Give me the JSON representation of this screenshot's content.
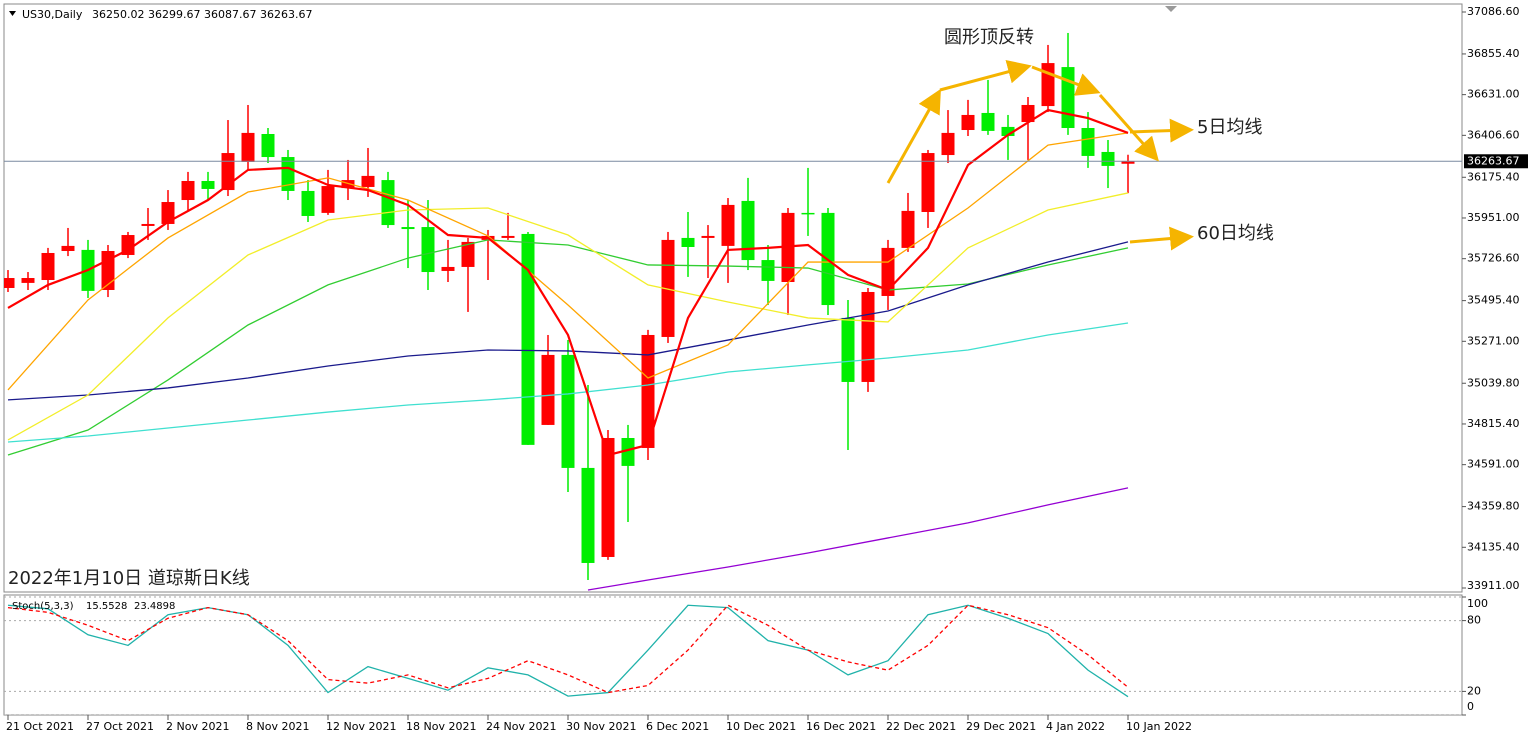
{
  "chart_data": {
    "type": "candlestick",
    "symbol": "US30,Daily",
    "categories": [
      "21 Oct 2021",
      null,
      null,
      null,
      "27 Oct 2021",
      null,
      null,
      null,
      "2 Nov 2021",
      null,
      null,
      null,
      "8 Nov 2021",
      null,
      null,
      null,
      "12 Nov 2021",
      null,
      null,
      null,
      "18 Nov 2021",
      null,
      null,
      null,
      "24 Nov 2021",
      null,
      null,
      null,
      "30 Nov 2021",
      null,
      null,
      null,
      "6 Dec 2021",
      null,
      null,
      null,
      "10 Dec 2021",
      null,
      null,
      null,
      "16 Dec 2021",
      null,
      null,
      null,
      "22 Dec 2021",
      null,
      null,
      null,
      "29 Dec 2021",
      null,
      null,
      null,
      "4 Jan 2022",
      null,
      null,
      null,
      "10 Jan 2022"
    ],
    "open": [
      35565,
      35593,
      35609,
      35769,
      35775,
      35554,
      35747,
      35907,
      35918,
      36050,
      36155,
      36105,
      36260,
      36414,
      36287,
      36100,
      35979,
      36116,
      36122,
      36160,
      35901,
      35901,
      35659,
      35681,
      35830,
      35841,
      35863,
      34810,
      35196,
      34573,
      34082,
      34738,
      34683,
      35295,
      35841,
      35841,
      35797,
      36045,
      35719,
      35598,
      35979,
      35979,
      35400,
      35047,
      35521,
      35786,
      35984,
      36298,
      36436,
      36530,
      36453,
      36480,
      36568,
      36783,
      36447,
      36315,
      36250.02
    ],
    "high": [
      35664,
      35653,
      35786,
      35896,
      35830,
      35802,
      35874,
      36006,
      36105,
      36205,
      36205,
      36491,
      36574,
      36447,
      36326,
      36160,
      36216,
      36271,
      36337,
      36205,
      36050,
      36050,
      35830,
      35841,
      35885,
      35979,
      35874,
      35306,
      35278,
      35030,
      34782,
      34810,
      35334,
      35874,
      35984,
      35912,
      36061,
      36172,
      35802,
      36006,
      36227,
      36006,
      35499,
      35565,
      35830,
      36089,
      36326,
      36546,
      36602,
      36712,
      36519,
      36618,
      36905,
      36971,
      36535,
      36381,
      36299.67
    ],
    "low": [
      35543,
      35554,
      35554,
      35741,
      35510,
      35515,
      35730,
      35830,
      35885,
      35995,
      36050,
      36072,
      36216,
      36254,
      36050,
      35929,
      35968,
      36050,
      36067,
      35896,
      35675,
      35554,
      35598,
      35433,
      35609,
      35830,
      34700,
      34810,
      34440,
      33955,
      34066,
      34275,
      34617,
      35262,
      35626,
      35620,
      35593,
      35664,
      35471,
      35416,
      35852,
      35416,
      34672,
      34992,
      35444,
      35764,
      35896,
      36254,
      36403,
      36409,
      36271,
      36271,
      36535,
      36409,
      36227,
      36116,
      36087.67
    ],
    "close": [
      35620,
      35620,
      35758,
      35797,
      35549,
      35769,
      35857,
      35918,
      36039,
      36155,
      36111,
      36309,
      36420,
      36287,
      36100,
      35962,
      36127,
      36160,
      36183,
      35912,
      35890,
      35653,
      35681,
      35819,
      35852,
      35852,
      34700,
      35196,
      34573,
      34049,
      34738,
      34584,
      35306,
      35830,
      35791,
      35852,
      36023,
      35719,
      35604,
      35979,
      35973,
      35471,
      35047,
      35543,
      35786,
      35990,
      36309,
      36420,
      36519,
      36431,
      36403,
      36574,
      36805,
      36447,
      36293,
      36238,
      36263.67
    ],
    "up_color": "#ff0000",
    "down_color": "#00ee00",
    "ylim": [
      33911,
      37086.6
    ],
    "yticks": [
      {
        "value": 37086.6,
        "label": "37086.60"
      },
      {
        "value": 36855.4,
        "label": "36855.40"
      },
      {
        "value": 36631,
        "label": "36631.00"
      },
      {
        "value": 36406.6,
        "label": "36406.60"
      },
      {
        "value": 36175.4,
        "label": "36175.40"
      },
      {
        "value": 35951,
        "label": "35951.00"
      },
      {
        "value": 35726.6,
        "label": "35726.60"
      },
      {
        "value": 35495.4,
        "label": "35495.40"
      },
      {
        "value": 35271,
        "label": "35271.00"
      },
      {
        "value": 35039.8,
        "label": "35039.80"
      },
      {
        "value": 34815.4,
        "label": "34815.40"
      },
      {
        "value": 34591,
        "label": "34591.00"
      },
      {
        "value": 34359.8,
        "label": "34359.80"
      },
      {
        "value": 34135.4,
        "label": "34135.40"
      },
      {
        "value": 33911,
        "label": "33911.00"
      }
    ],
    "moving_averages": [
      {
        "color": "#32cd32",
        "x": [
          0,
          4,
          8,
          12,
          16,
          20,
          24,
          28,
          32,
          36,
          40,
          44,
          48,
          52,
          56
        ],
        "values": [
          34644,
          34782,
          35058,
          35361,
          35582,
          35730,
          35830,
          35802,
          35692,
          35686,
          35675,
          35554,
          35587,
          35692,
          35786
        ]
      },
      {
        "color": "#40e0d0",
        "x": [
          0,
          4,
          8,
          12,
          16,
          20,
          24,
          28,
          32,
          36,
          40,
          44,
          48,
          52,
          56
        ],
        "values": [
          34716,
          34749,
          34793,
          34837,
          34881,
          34920,
          34948,
          34981,
          35030,
          35102,
          35141,
          35179,
          35223,
          35306,
          35372
        ]
      },
      {
        "color": "#9400d3",
        "x": [
          29,
          32,
          36,
          40,
          44,
          48,
          52,
          56
        ],
        "values": [
          33900,
          33955,
          34027,
          34104,
          34187,
          34270,
          34369,
          34463
        ]
      },
      {
        "color": "#1a1a8c",
        "x": [
          0,
          4,
          8,
          12,
          16,
          20,
          24,
          28,
          32,
          36,
          40,
          44,
          48,
          52,
          56
        ],
        "values": [
          34948,
          34975,
          35014,
          35069,
          35135,
          35190,
          35223,
          35218,
          35196,
          35278,
          35361,
          35438,
          35582,
          35708,
          35819
        ]
      },
      {
        "color": "#f2ee2a",
        "x": [
          0,
          4,
          8,
          12,
          16,
          20,
          24,
          28,
          32,
          36,
          40,
          44,
          48,
          52,
          56
        ],
        "values": [
          34727,
          34975,
          35400,
          35747,
          35940,
          35995,
          36006,
          35857,
          35582,
          35488,
          35400,
          35378,
          35786,
          35995,
          36089
        ]
      },
      {
        "color": "#ffa500",
        "x": [
          0,
          4,
          8,
          12,
          16,
          20,
          24,
          28,
          32,
          36,
          40,
          44,
          48,
          52,
          56
        ],
        "values": [
          35003,
          35499,
          35841,
          36094,
          36172,
          36050,
          35852,
          35471,
          35069,
          35251,
          35708,
          35708,
          36006,
          36353,
          36420
        ]
      },
      {
        "color": "#ff0000",
        "x": [
          0,
          2,
          4,
          6,
          8,
          10,
          12,
          14,
          16,
          18,
          20,
          22,
          24,
          26,
          28,
          30,
          32,
          34,
          36,
          38,
          40,
          42,
          44,
          46,
          48,
          50,
          52,
          54,
          56
        ],
        "values": [
          35455,
          35582,
          35664,
          35775,
          35929,
          36050,
          36216,
          36227,
          36133,
          36105,
          36023,
          35857,
          35841,
          35664,
          35306,
          34644,
          34700,
          35400,
          35775,
          35786,
          35802,
          35637,
          35554,
          35786,
          36243,
          36409,
          36546,
          36502,
          36420
        ]
      }
    ],
    "annotations": [
      "圆形顶反转",
      "5日均线",
      "60日均线"
    ],
    "caption": "2022年1月10日 道琼斯日K线",
    "stochastic": {
      "label": "Stoch(5,3,3)",
      "ylim": [
        0,
        100
      ],
      "yticks": [
        100,
        80,
        20,
        0
      ],
      "k": {
        "color": "#20b2aa",
        "x": [
          0,
          2,
          4,
          6,
          8,
          10,
          12,
          14,
          16,
          18,
          20,
          22,
          24,
          26,
          28,
          30,
          32,
          34,
          36,
          38,
          40,
          42,
          44,
          46,
          48,
          50,
          52,
          54,
          56
        ],
        "values": [
          93,
          90,
          68,
          59,
          85,
          91,
          85,
          59,
          19,
          41,
          31,
          21,
          40,
          34,
          16,
          19,
          55,
          93,
          91,
          63,
          55,
          34,
          46,
          85,
          93,
          82,
          69,
          38,
          15.5528
        ]
      },
      "d": {
        "color": "#ff0000",
        "x": [
          0,
          2,
          4,
          6,
          8,
          10,
          12,
          14,
          16,
          18,
          20,
          22,
          24,
          26,
          28,
          30,
          32,
          34,
          36,
          38,
          40,
          42,
          44,
          46,
          48,
          50,
          52,
          54,
          56
        ],
        "values": [
          91,
          87,
          76,
          63,
          82,
          91,
          85,
          63,
          30,
          27,
          34,
          23,
          31,
          46,
          34,
          19,
          25,
          55,
          93,
          76,
          55,
          45,
          38,
          59,
          93,
          85,
          74,
          51,
          23.4898
        ]
      }
    }
  }
}
